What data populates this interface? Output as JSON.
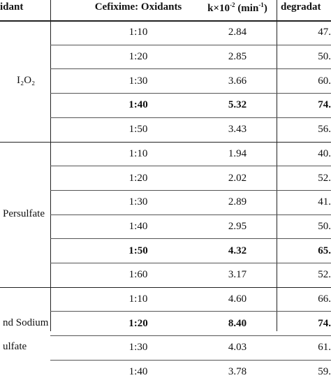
{
  "headers": {
    "oxidant": "idant",
    "ratio": "Cefixime: Oxidants",
    "k_prefix": "k×10",
    "k_exp": "-2",
    "k_unit_open": " (min",
    "k_unit_exp": "-1",
    "k_unit_close": ")",
    "degradation": "degradat"
  },
  "groups": [
    {
      "oxidant_lines": [
        "I₂O₂"
      ],
      "rows": [
        {
          "ratio": "1:10",
          "k": "2.84",
          "deg": "47.",
          "bold": false
        },
        {
          "ratio": "1:20",
          "k": "2.85",
          "deg": "50.",
          "bold": false
        },
        {
          "ratio": "1:30",
          "k": "3.66",
          "deg": "60.",
          "bold": false
        },
        {
          "ratio": "1:40",
          "k": "5.32",
          "deg": "74.",
          "bold": true
        },
        {
          "ratio": "1:50",
          "k": "3.43",
          "deg": "56.",
          "bold": false
        }
      ]
    },
    {
      "oxidant_lines": [
        "Persulfate"
      ],
      "rows": [
        {
          "ratio": "1:10",
          "k": "1.94",
          "deg": "40.",
          "bold": false
        },
        {
          "ratio": "1:20",
          "k": "2.02",
          "deg": "52.",
          "bold": false
        },
        {
          "ratio": "1:30",
          "k": "2.89",
          "deg": "41.",
          "bold": false
        },
        {
          "ratio": "1:40",
          "k": "2.95",
          "deg": "50.",
          "bold": false
        },
        {
          "ratio": "1:50",
          "k": "4.32",
          "deg": "65.",
          "bold": true
        },
        {
          "ratio": "1:60",
          "k": "3.17",
          "deg": "52.",
          "bold": false
        }
      ]
    },
    {
      "oxidant_lines": [
        "nd Sodium",
        "ulfate"
      ],
      "rows": [
        {
          "ratio": "1:10",
          "k": "4.60",
          "deg": "66.",
          "bold": false
        },
        {
          "ratio": "1:20",
          "k": "8.40",
          "deg": "74.",
          "bold": true
        },
        {
          "ratio": "1:30",
          "k": "4.03",
          "deg": "61.",
          "bold": false
        },
        {
          "ratio": "1:40",
          "k": "3.78",
          "deg": "59.",
          "bold": false
        }
      ]
    }
  ]
}
